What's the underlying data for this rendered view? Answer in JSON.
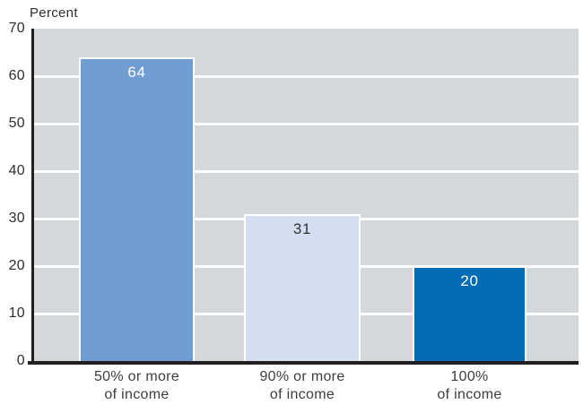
{
  "page": {
    "background": "#ffffff"
  },
  "chart_data": {
    "type": "bar",
    "ylabel": "Percent",
    "ylim": [
      0,
      70
    ],
    "yticks": [
      0,
      10,
      20,
      30,
      40,
      50,
      60,
      70
    ],
    "grid": true,
    "categories": [
      {
        "line1": "50% or more",
        "line2": "of income"
      },
      {
        "line1": "90% or more",
        "line2": "of income"
      },
      {
        "line1": "100%",
        "line2": "of income"
      }
    ],
    "values": [
      64,
      31,
      20
    ],
    "value_labels": [
      "64",
      "31",
      "20"
    ],
    "bar_colors": [
      "#6f9dd1",
      "#d4def0",
      "#016cb3"
    ],
    "value_label_colors": [
      "#ffffff",
      "#323234",
      "#ffffff"
    ],
    "plot_background": "#d5d8da",
    "gridline_color": "#ffffff",
    "axis_color": "#231f20",
    "tick_label_color": "#2e2e30",
    "category_label_color": "#3c3d3f"
  }
}
